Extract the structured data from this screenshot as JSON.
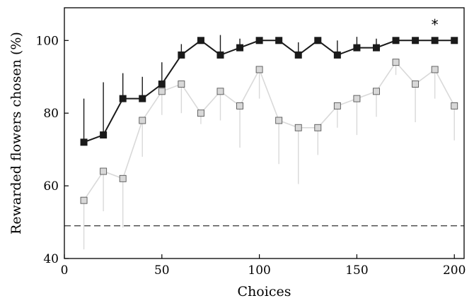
{
  "chart_data": {
    "type": "line",
    "title": "",
    "xlabel": "Choices",
    "ylabel": "Rewarded flowers chosen (%)",
    "xlim": [
      0,
      205
    ],
    "ylim": [
      40,
      109
    ],
    "x_ticks": [
      0,
      50,
      100,
      150,
      200
    ],
    "y_ticks": [
      40,
      60,
      80,
      100
    ],
    "grid": false,
    "x": [
      10,
      20,
      30,
      40,
      50,
      60,
      70,
      80,
      90,
      100,
      110,
      120,
      130,
      140,
      150,
      160,
      170,
      180,
      190,
      200
    ],
    "series": [
      {
        "color": "#1a1a1a",
        "marker_fill": "#1a1a1a",
        "values": [
          72,
          74,
          84,
          84,
          88,
          96,
          100,
          96,
          98,
          100,
          100,
          96,
          100,
          96,
          98,
          98,
          100,
          100,
          100,
          100
        ],
        "error_direction": "up",
        "errors": [
          12,
          14.5,
          7,
          6,
          6,
          3,
          0,
          5.5,
          2.5,
          0,
          0,
          3.5,
          0,
          4,
          3,
          2.5,
          0,
          0,
          0,
          0
        ]
      },
      {
        "color": "#d9d9d9",
        "marker_fill": "#d8d8d8",
        "values": [
          56,
          64,
          62,
          78,
          86,
          88,
          80,
          86,
          82,
          92,
          78,
          76,
          76,
          82,
          84,
          86,
          94,
          88,
          92,
          82
        ],
        "error_direction": "down",
        "errors": [
          13.5,
          11,
          13.5,
          10,
          6.5,
          8,
          3,
          8,
          11.5,
          8,
          12,
          15.5,
          7.5,
          6,
          10,
          7,
          3.5,
          10.5,
          8,
          9.5
        ]
      }
    ],
    "reference_line": {
      "y": 49,
      "style": "dashed"
    },
    "annotations": [
      {
        "text": "*",
        "x": 190,
        "y": 104.5
      }
    ]
  }
}
